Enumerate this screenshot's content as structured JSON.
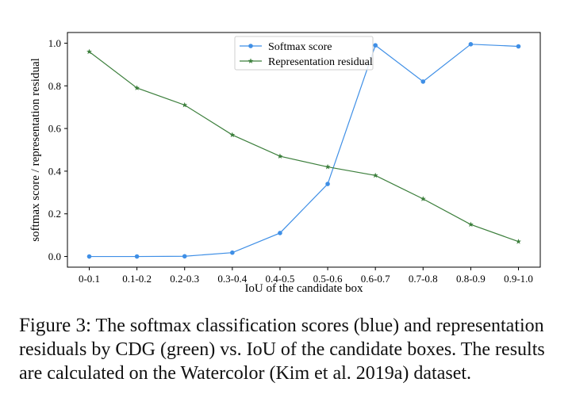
{
  "chart_data": {
    "type": "line",
    "categories": [
      "0-0.1",
      "0.1-0.2",
      "0.2-0.3",
      "0.3-0.4",
      "0.4-0.5",
      "0.5-0.6",
      "0.6-0.7",
      "0.7-0.8",
      "0.8-0.9",
      "0.9-1.0"
    ],
    "series": [
      {
        "name": "Softmax score",
        "color": "#3f8fe6",
        "marker": "circle",
        "values": [
          0.0,
          0.0,
          0.001,
          0.018,
          0.11,
          0.34,
          0.99,
          0.82,
          0.995,
          0.985
        ]
      },
      {
        "name": "Representation residual",
        "color": "#3c7f3c",
        "marker": "star",
        "values": [
          0.96,
          0.79,
          0.71,
          0.57,
          0.47,
          0.42,
          0.38,
          0.27,
          0.15,
          0.07
        ]
      }
    ],
    "xlabel": "IoU of the candidate box",
    "ylabel": "softmax score / representation residual",
    "ylim": [
      -0.05,
      1.05
    ],
    "yticks": [
      "0.0",
      "0.2",
      "0.4",
      "0.6",
      "0.8",
      "1.0"
    ],
    "ytick_values": [
      0.0,
      0.2,
      0.4,
      0.6,
      0.8,
      1.0
    ],
    "grid": false,
    "legend_position": "top-center"
  },
  "caption": {
    "label": "Figure 3:",
    "text": "The softmax classification scores (blue) and representation residuals by CDG (green) vs. IoU of the candidate boxes. The results are calculated on the Watercolor (Kim et al. 2019a) dataset."
  }
}
